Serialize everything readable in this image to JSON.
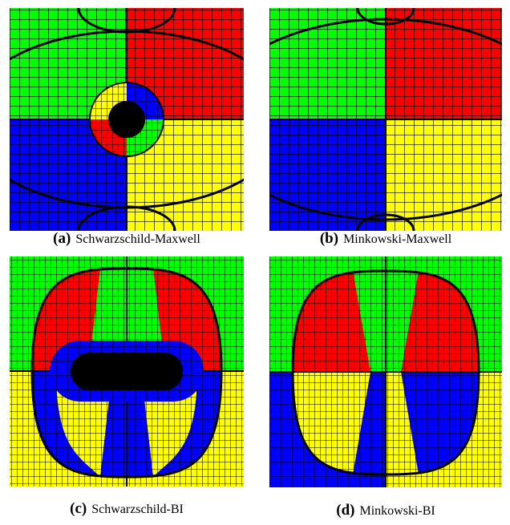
{
  "panels": [
    {
      "label": "(a)",
      "caption": "Schwarzschild-Maxwell"
    },
    {
      "label": "(b)",
      "caption": "Minkowski-Maxwell"
    },
    {
      "label": "(c)",
      "caption": "Schwarzschild-BI"
    },
    {
      "label": "(d)",
      "caption": "Minkowski-BI"
    }
  ]
}
